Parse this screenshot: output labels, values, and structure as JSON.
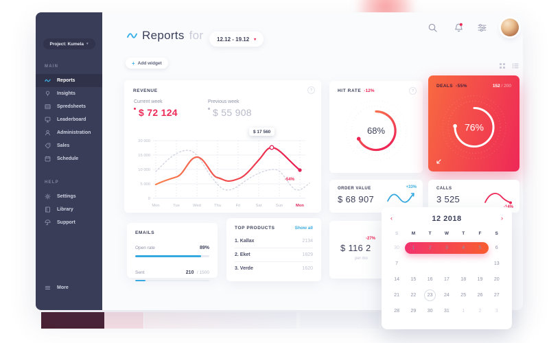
{
  "header": {
    "title": "Reports",
    "title_connector": "for",
    "date_range": "12.12 - 19.12",
    "actions": {
      "add_widget": "Add widget",
      "add_widget_plus": "+"
    }
  },
  "icons": {
    "logo": "wave-squiggle",
    "search": "magnifying-glass",
    "notifications": "bell-with-red-badge",
    "filters": "sliders",
    "view_grid": "grid-dots",
    "view_list": "list-lines",
    "date_dropdown": "chevron-down",
    "calendar_prev": "chevron-left",
    "calendar_next": "chevron-right",
    "deals_corner": "arrow-down-left",
    "info": "question-circle"
  },
  "sidebar": {
    "project": "Project: Kumela",
    "sections": [
      {
        "label": "MAIN",
        "items": [
          {
            "label": "Reports",
            "icon": "reports-icon",
            "active": true
          },
          {
            "label": "Insights",
            "icon": "insights-icon",
            "active": false
          },
          {
            "label": "Spredsheets",
            "icon": "spreadsheets-icon",
            "active": false
          },
          {
            "label": "Leaderboard",
            "icon": "leaderboard-icon",
            "active": false
          },
          {
            "label": "Administration",
            "icon": "administration-icon",
            "active": false
          },
          {
            "label": "Sales",
            "icon": "sales-icon",
            "active": false
          },
          {
            "label": "Schedule",
            "icon": "schedule-icon",
            "active": false
          }
        ]
      },
      {
        "label": "HELP",
        "items": [
          {
            "label": "Settings",
            "icon": "settings-icon",
            "active": false
          },
          {
            "label": "Library",
            "icon": "library-icon",
            "active": false
          },
          {
            "label": "Support",
            "icon": "support-icon",
            "active": false
          }
        ]
      }
    ],
    "more": "More"
  },
  "widgets": {
    "revenue": {
      "title": "REVENUE",
      "current_week_label": "Current week",
      "current_week_value": "$ 72 124",
      "previous_week_label": "Previous week",
      "previous_week_value": "$ 55 908",
      "tooltip": "$ 17 560",
      "end_change": "-54%"
    },
    "hit_rate": {
      "title": "HIT RATE",
      "change": "-12%",
      "value": "68%"
    },
    "deals": {
      "title": "DEALS",
      "change": "-55%",
      "count": "152",
      "total": "/ 200",
      "value": "76%"
    },
    "order_value": {
      "title": "ORDER VALUE",
      "change": "+33%",
      "value": "$ 68 907"
    },
    "calls": {
      "title": "CALLS",
      "value": "3 525",
      "change": "-14%"
    },
    "emails": {
      "title": "EMAILS",
      "rows": [
        {
          "label": "Open rate",
          "value": "89%",
          "total": "",
          "pct": 89
        },
        {
          "label": "Sent",
          "value": "210",
          "total": "/ 1500",
          "pct": 14
        }
      ]
    },
    "top_products": {
      "title": "TOP PRODUCTS",
      "action": "Show all",
      "items": [
        {
          "name": "1. Kallax",
          "value": "2134"
        },
        {
          "name": "2. Eket",
          "value": "1829"
        },
        {
          "name": "3. Verde",
          "value": "1620"
        }
      ]
    },
    "monthly": {
      "change": "-27%",
      "value": "$ 116 2",
      "caption": "per mo"
    }
  },
  "chart_data": {
    "type": "line",
    "title": "REVENUE",
    "x": [
      "Mon",
      "Tue",
      "Wed",
      "Thu",
      "Fri",
      "Sat",
      "Sun",
      "Mon"
    ],
    "series": [
      {
        "name": "Current week",
        "style": "solid-gradient",
        "values": [
          4200,
          7400,
          13500,
          6500,
          7000,
          15100,
          17560,
          9500
        ],
        "peak_label": "$ 17 560",
        "end_change": "-54%"
      },
      {
        "name": "Previous week",
        "style": "dotted",
        "values": [
          9300,
          15500,
          16700,
          6000,
          2800,
          6500,
          10000,
          2800
        ]
      }
    ],
    "ylim": [
      0,
      20000
    ],
    "yticks": [
      "20 000",
      "15 000",
      "10 000",
      "5 000",
      "0"
    ],
    "grid": "horizontal-light-plus-vertical-dotted",
    "legend_position": "above-as-stats"
  },
  "calendar": {
    "title": "12 2018",
    "weekdays": [
      "S",
      "M",
      "T",
      "W",
      "T",
      "F",
      "S"
    ],
    "weekday_muted_cols": [
      0
    ],
    "rows": [
      [
        "30",
        "1",
        "2",
        "3",
        "4",
        "5",
        "6"
      ],
      [
        "7",
        "8",
        "9",
        "10",
        "11",
        "12",
        "13"
      ],
      [
        "14",
        "15",
        "16",
        "17",
        "18",
        "19",
        "20"
      ],
      [
        "21",
        "22",
        "23",
        "24",
        "25",
        "26",
        "27"
      ],
      [
        "28",
        "29",
        "30",
        "31",
        "1",
        "2",
        "3"
      ]
    ],
    "muted_cells": [
      [
        0,
        0
      ],
      [
        4,
        4
      ],
      [
        4,
        5
      ],
      [
        4,
        6
      ]
    ],
    "selected_range": {
      "row": 1,
      "start_col": 1,
      "end_col": 5,
      "days": [
        "8",
        "9",
        "10",
        "11",
        "12"
      ]
    },
    "today": {
      "row": 3,
      "col": 2,
      "day": "23"
    }
  },
  "colors": {
    "accent_blue": "#36a9e1",
    "red_pink": "#ed2655",
    "orange": "#f86a40",
    "gradient_deals": [
      "#f86a40",
      "#ee2857"
    ],
    "gradient_range_pill": [
      "#f2326e",
      "#f85c31"
    ],
    "sidebar_bg": "#3a3d58",
    "text_dark": "#3b3f5a",
    "text_muted": "#8e92a8",
    "text_light": "#c3c6d4",
    "reflection": [
      "#4a2133",
      "#fbe3e8",
      "#fdf4f6",
      "#fbfcfe"
    ]
  }
}
